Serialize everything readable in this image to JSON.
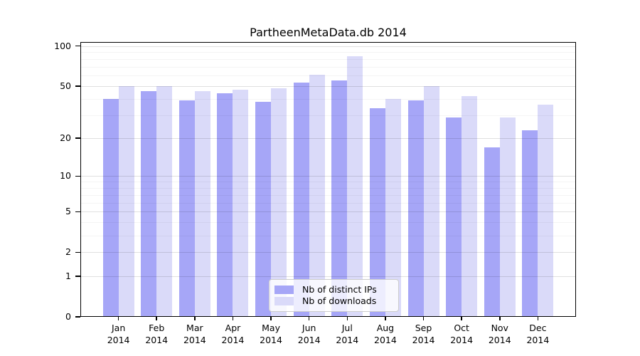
{
  "chart_data": {
    "type": "bar",
    "title": "PartheenMetaData.db 2014",
    "categories": [
      "Jan",
      "Feb",
      "Mar",
      "Apr",
      "May",
      "Jun",
      "Jul",
      "Aug",
      "Sep",
      "Oct",
      "Nov",
      "Dec"
    ],
    "x_tick_year": "2014",
    "series": [
      {
        "name": "Nb of distinct IPs",
        "color": "#a6a6f7",
        "values": [
          40,
          46,
          39,
          44,
          38,
          53,
          55,
          34,
          39,
          29,
          17,
          23
        ]
      },
      {
        "name": "Nb of downloads",
        "color": "#dadaf9",
        "values": [
          50,
          50,
          46,
          47,
          48,
          61,
          84,
          40,
          50,
          42,
          29,
          36
        ]
      }
    ],
    "y_scale": "log1p",
    "ylim": [
      0,
      107
    ],
    "y_axis": {
      "ticks": [
        {
          "value": 100,
          "label": "100"
        },
        {
          "value": 50,
          "label": "50"
        },
        {
          "value": 20,
          "label": "20"
        },
        {
          "value": 10,
          "label": "10"
        },
        {
          "value": 5,
          "label": "5"
        },
        {
          "value": 2,
          "label": "2"
        },
        {
          "value": 1,
          "label": "1"
        },
        {
          "value": 0,
          "label": "0"
        }
      ],
      "minor_gridlines": [
        90,
        80,
        70,
        60,
        40,
        30,
        9,
        8,
        7,
        6,
        4,
        3
      ]
    },
    "grid": true,
    "legend_position": "lower center"
  },
  "colors": {
    "major_grid": "rgba(0,0,0,0.12)",
    "minor_grid": "rgba(0,0,0,0.045)",
    "frame": "#000000",
    "text": "#000000",
    "legend_bg": "rgba(255,255,255,0.8)",
    "legend_border": "#cccccc"
  }
}
